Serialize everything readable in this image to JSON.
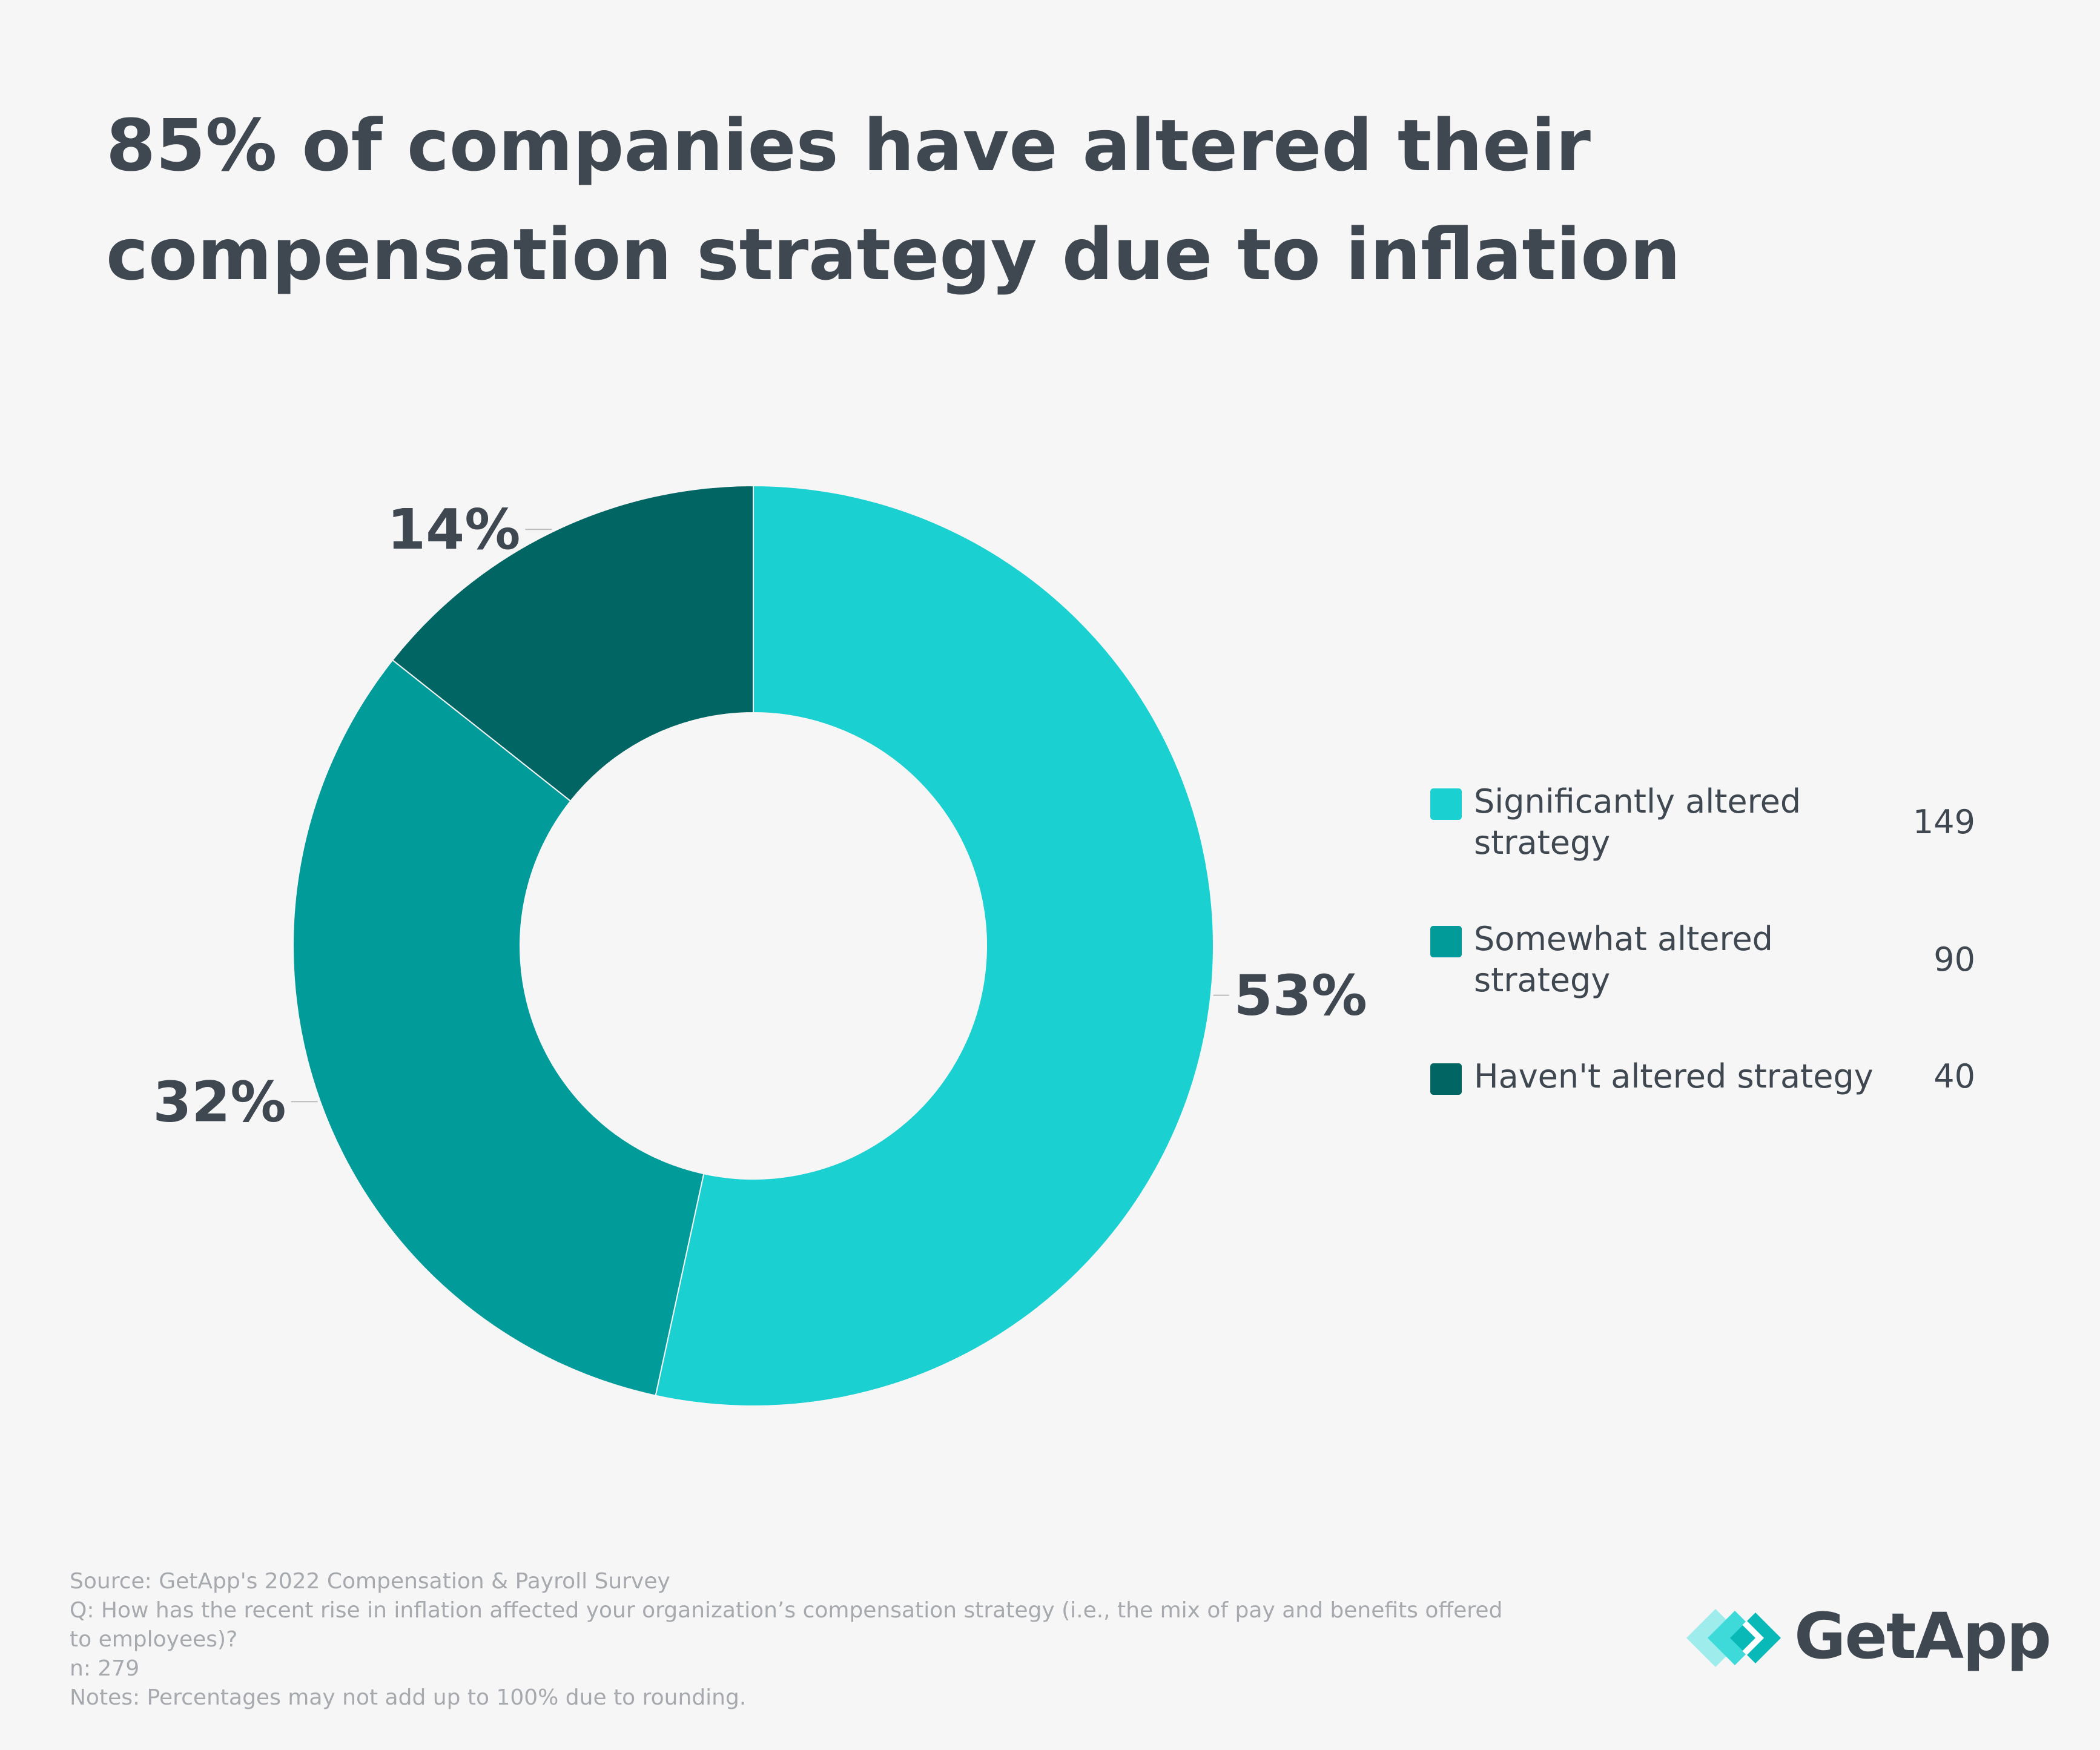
{
  "title": "85% of companies have altered their compensation strategy due to inflation",
  "chart_data": {
    "type": "pie",
    "subtype": "donut",
    "categories": [
      "Significantly altered strategy",
      "Somewhat altered strategy",
      "Haven't altered strategy"
    ],
    "values": [
      149,
      90,
      40
    ],
    "percent_labels": [
      "53%",
      "32%",
      "14%"
    ],
    "colors": [
      "#1ad0d1",
      "#019b9a",
      "#016563"
    ],
    "legend_position": "right"
  },
  "legend": {
    "items": [
      {
        "label": "Significantly altered strategy",
        "value": "149",
        "color": "#1ad0d1"
      },
      {
        "label": "Somewhat altered strategy",
        "value": "90",
        "color": "#019b9a"
      },
      {
        "label": "Haven't altered strategy",
        "value": "40",
        "color": "#016563"
      }
    ]
  },
  "footer": {
    "source": "Source: GetApp's 2022 Compensation & Payroll Survey",
    "question": "Q: How has the recent rise in inflation affected your organization’s compensation strategy (i.e., the mix of pay and benefits offered to employees)?",
    "n": "n: 279",
    "notes": "Notes: Percentages may not add up to 100% due to rounding."
  },
  "brand": {
    "name": "GetApp",
    "icon": "getapp-logo-icon",
    "colors": [
      "#9eecec",
      "#3ed9d9",
      "#08b9b8"
    ]
  }
}
